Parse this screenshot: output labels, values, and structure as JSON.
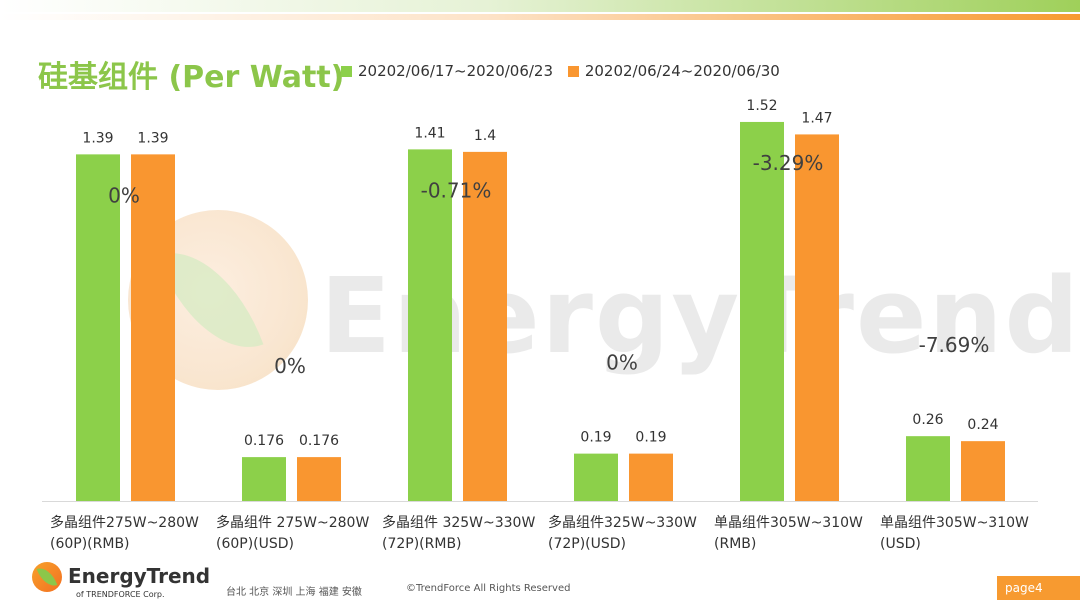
{
  "title": "硅基组件 (Per Watt)",
  "legend": [
    {
      "label": "20202/06/17~2020/06/23",
      "color": "#8cd04a"
    },
    {
      "label": "20202/06/24~2020/06/30",
      "color": "#f99630"
    }
  ],
  "watermark": "EnergyTrend",
  "footer": {
    "logo_name": "EnergyTrend",
    "logo_sub": "of TRENDFORCE Corp.",
    "cities": "台北 北京 深圳 上海 福建 安徽",
    "copyright": "©TrendForce All Rights Reserved",
    "page": "page4"
  },
  "chart_data": {
    "type": "bar",
    "categories": [
      [
        "多晶组件275W~280W",
        "(60P)(RMB)"
      ],
      [
        "多晶组件 275W~280W",
        "(60P)(USD)"
      ],
      [
        "多晶组件 325W~330W",
        "(72P)(RMB)"
      ],
      [
        "多晶组件325W~330W",
        "(72P)(USD)"
      ],
      [
        "单晶组件305W~310W",
        "(RMB)"
      ],
      [
        "单晶组件305W~310W",
        "(USD)"
      ]
    ],
    "series": [
      {
        "name": "20202/06/17~2020/06/23",
        "values": [
          1.39,
          0.176,
          1.41,
          0.19,
          1.52,
          0.26
        ],
        "labels": [
          "1.39",
          "0.176",
          "1.41",
          "0.19",
          "1.52",
          "0.26"
        ],
        "color": "#8cd04a"
      },
      {
        "name": "20202/06/24~2020/06/30",
        "values": [
          1.39,
          0.176,
          1.4,
          0.19,
          1.47,
          0.24
        ],
        "labels": [
          "1.39",
          "0.176",
          "1.4",
          "0.19",
          "1.47",
          "0.24"
        ],
        "color": "#f99630"
      }
    ],
    "changes": [
      "0%",
      "0%",
      "-0.71%",
      "0%",
      "-3.29%",
      "-7.69%"
    ],
    "ylim": [
      0,
      1.6
    ],
    "grid": false,
    "legend_position": "top"
  }
}
